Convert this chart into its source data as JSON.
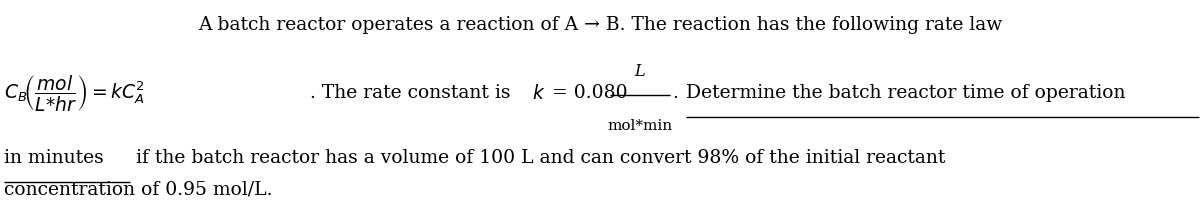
{
  "figsize": [
    12.0,
    2.03
  ],
  "dpi": 100,
  "bg_color": "#ffffff",
  "line1": "A batch reactor operates a reaction of A → B. The reaction has the following rate law",
  "line5": "concentration of 0.95 mol/L.",
  "fontsize": 13.5,
  "text_color": "#000000",
  "cb_math": "$C_B\\!\\left(\\dfrac{mol}{L{*}hr}\\right) = kC_A^2$",
  "normal_part": ". The rate constant is ",
  "k_math": "$k$",
  "equals_part": " = 0.080 ",
  "frac_num": "L",
  "frac_den": "mol*min",
  "period_part": ". ",
  "det_text": "Determine the batch reactor time of operation",
  "in_minutes": "in minutes",
  "rest_line3": " if the batch reactor has a volume of 100 L and can convert 98% of the initial reactant"
}
